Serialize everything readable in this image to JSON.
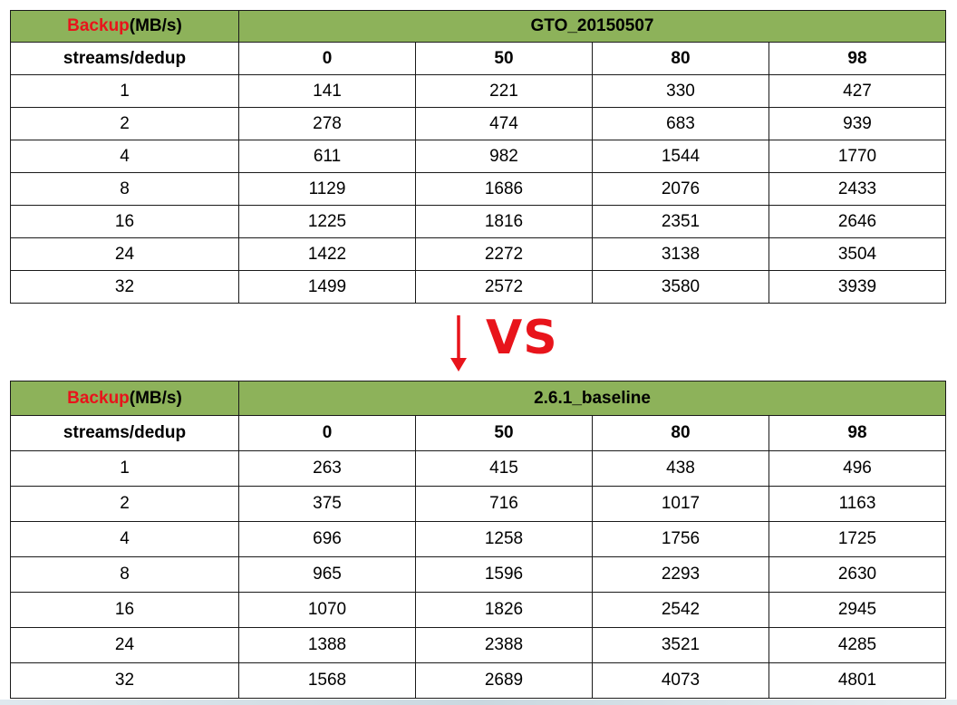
{
  "colors": {
    "header_bg": "#8db25a",
    "accent_red": "#e8141b"
  },
  "tables": [
    {
      "corner_red": "Backup",
      "corner_rest": "(MB/s)",
      "title": "GTO_20150507",
      "subheader": [
        "streams/dedup",
        "0",
        "50",
        "80",
        "98"
      ],
      "rows": [
        [
          "1",
          "141",
          "221",
          "330",
          "427"
        ],
        [
          "2",
          "278",
          "474",
          "683",
          "939"
        ],
        [
          "4",
          "611",
          "982",
          "1544",
          "1770"
        ],
        [
          "8",
          "1129",
          "1686",
          "2076",
          "2433"
        ],
        [
          "16",
          "1225",
          "1816",
          "2351",
          "2646"
        ],
        [
          "24",
          "1422",
          "2272",
          "3138",
          "3504"
        ],
        [
          "32",
          "1499",
          "2572",
          "3580",
          "3939"
        ]
      ]
    },
    {
      "corner_red": "Backup",
      "corner_rest": "(MB/s)",
      "title": "2.6.1_baseline",
      "subheader": [
        "streams/dedup",
        "0",
        "50",
        "80",
        "98"
      ],
      "rows": [
        [
          "1",
          "263",
          "415",
          "438",
          "496"
        ],
        [
          "2",
          "375",
          "716",
          "1017",
          "1163"
        ],
        [
          "4",
          "696",
          "1258",
          "1756",
          "1725"
        ],
        [
          "8",
          "965",
          "1596",
          "2293",
          "2630"
        ],
        [
          "16",
          "1070",
          "1826",
          "2542",
          "2945"
        ],
        [
          "24",
          "1388",
          "2388",
          "3521",
          "4285"
        ],
        [
          "32",
          "1568",
          "2689",
          "4073",
          "4801"
        ]
      ]
    }
  ],
  "connector": {
    "label": "VS",
    "icon": "down-arrow-icon"
  }
}
